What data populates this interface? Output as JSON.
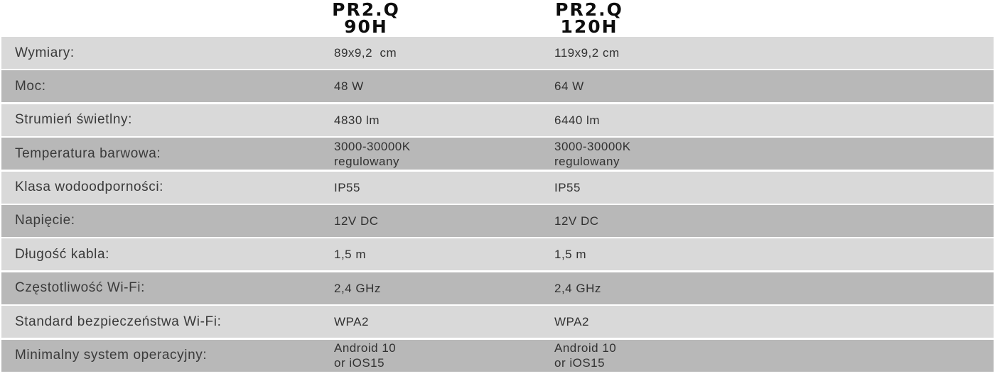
{
  "table": {
    "columns": [
      {
        "label": "PR2.Q\n90H"
      },
      {
        "label": "PR2.Q\n120H"
      }
    ],
    "rows": [
      {
        "label": "Wymiary:",
        "col1": "89x9,2  cm",
        "col2": "119x9,2 cm"
      },
      {
        "label": "Moc:",
        "col1": "48 W",
        "col2": "64 W"
      },
      {
        "label": "Strumień świetlny:",
        "col1": "4830 lm",
        "col2": "6440 lm"
      },
      {
        "label": "Temperatura barwowa:",
        "col1": "3000-30000K\nregulowany",
        "col2": "3000-30000K\nregulowany"
      },
      {
        "label": "Klasa wodoodporności:",
        "col1": "IP55",
        "col2": "IP55"
      },
      {
        "label": "Napięcie:",
        "col1": "12V DC",
        "col2": "12V DC"
      },
      {
        "label": "Długość kabla:",
        "col1": "1,5 m",
        "col2": "1,5 m"
      },
      {
        "label": "Częstotliwość Wi-Fi:",
        "col1": "2,4 GHz",
        "col2": "2,4 GHz"
      },
      {
        "label": "Standard bezpieczeństwa Wi-Fi:",
        "col1": "WPA2",
        "col2": "WPA2"
      },
      {
        "label": "Minimalny system operacyjny:",
        "col1": "Android 10\nor iOS15",
        "col2": "Android 10\nor iOS15"
      }
    ],
    "colors": {
      "row_light": "#d9d9d9",
      "row_dark": "#b8b8b8",
      "header_text": "#0d0d0d",
      "label_text": "#3a3a3a",
      "value_text": "#323232",
      "background": "#ffffff"
    }
  }
}
